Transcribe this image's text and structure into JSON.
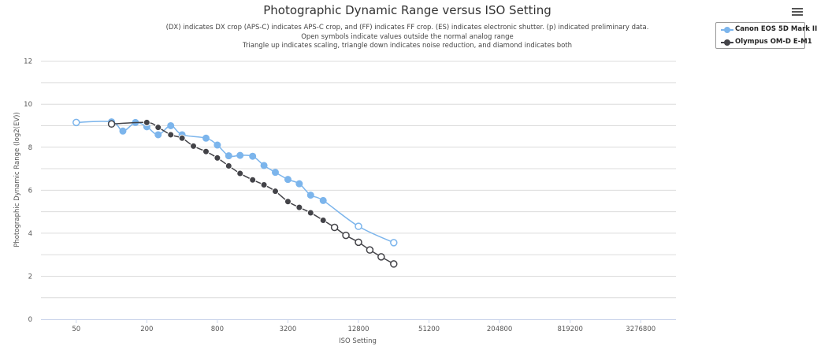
{
  "chart_data": {
    "type": "line",
    "title": "Photographic Dynamic Range versus ISO Setting",
    "subtitle": [
      "(DX) indicates DX crop (APS-C) indicates APS-C crop, and (FF) indicates FF crop. (ES) indicates electronic shutter. (p) indicated preliminary data.",
      "Open symbols indicate values outside the normal analog range",
      "Triangle up indicates scaling, triangle down indicates noise reduction, and diamond indicates both"
    ],
    "xlabel": "ISO Setting",
    "ylabel": "Photographic Dynamic Range (log2(EV))",
    "x_scale": "log2",
    "x_ticks": [
      50,
      200,
      800,
      3200,
      12800,
      51200,
      204800,
      819200,
      3276800
    ],
    "x_tick_labels": [
      "50",
      "200",
      "800",
      "3200",
      "12800",
      "51200",
      "204800",
      "819200",
      "3276800"
    ],
    "xlim": [
      25,
      6553600
    ],
    "ylim": [
      0,
      12.5
    ],
    "y_ticks": [
      0,
      2,
      4,
      6,
      8,
      10,
      12
    ],
    "y_tick_labels": [
      "0",
      "2",
      "4",
      "6",
      "8",
      "10",
      "12"
    ],
    "grid": true,
    "legend_position": "top-right",
    "series": [
      {
        "name": "Canon EOS 5D Mark II",
        "color": "#7cb5ec",
        "points": [
          {
            "x": 50,
            "y": 9.15,
            "open": true
          },
          {
            "x": 100,
            "y": 9.18,
            "open": false
          },
          {
            "x": 125,
            "y": 8.75,
            "open": false
          },
          {
            "x": 160,
            "y": 9.15,
            "open": false
          },
          {
            "x": 200,
            "y": 8.95,
            "open": false
          },
          {
            "x": 250,
            "y": 8.58,
            "open": false
          },
          {
            "x": 320,
            "y": 9.0,
            "open": false
          },
          {
            "x": 400,
            "y": 8.58,
            "open": false
          },
          {
            "x": 640,
            "y": 8.42,
            "open": false
          },
          {
            "x": 800,
            "y": 8.1,
            "open": false
          },
          {
            "x": 1000,
            "y": 7.6,
            "open": false
          },
          {
            "x": 1250,
            "y": 7.62,
            "open": false
          },
          {
            "x": 1600,
            "y": 7.58,
            "open": false
          },
          {
            "x": 2000,
            "y": 7.15,
            "open": false
          },
          {
            "x": 2500,
            "y": 6.83,
            "open": false
          },
          {
            "x": 3200,
            "y": 6.5,
            "open": false
          },
          {
            "x": 4000,
            "y": 6.3,
            "open": false
          },
          {
            "x": 5000,
            "y": 5.77,
            "open": false
          },
          {
            "x": 6400,
            "y": 5.52,
            "open": false
          },
          {
            "x": 12800,
            "y": 4.32,
            "open": true
          },
          {
            "x": 25600,
            "y": 3.56,
            "open": true
          }
        ]
      },
      {
        "name": "Olympus OM-D E-M1",
        "color": "#434348",
        "points": [
          {
            "x": 100,
            "y": 9.08,
            "open": true
          },
          {
            "x": 200,
            "y": 9.15,
            "open": false
          },
          {
            "x": 250,
            "y": 8.92,
            "open": false
          },
          {
            "x": 320,
            "y": 8.58,
            "open": false
          },
          {
            "x": 400,
            "y": 8.42,
            "open": false
          },
          {
            "x": 500,
            "y": 8.05,
            "open": false
          },
          {
            "x": 640,
            "y": 7.8,
            "open": false
          },
          {
            "x": 800,
            "y": 7.5,
            "open": false
          },
          {
            "x": 1000,
            "y": 7.13,
            "open": false
          },
          {
            "x": 1250,
            "y": 6.78,
            "open": false
          },
          {
            "x": 1600,
            "y": 6.48,
            "open": false
          },
          {
            "x": 2000,
            "y": 6.25,
            "open": false
          },
          {
            "x": 2500,
            "y": 5.95,
            "open": false
          },
          {
            "x": 3200,
            "y": 5.47,
            "open": false
          },
          {
            "x": 4000,
            "y": 5.2,
            "open": false
          },
          {
            "x": 5000,
            "y": 4.95,
            "open": false
          },
          {
            "x": 6400,
            "y": 4.6,
            "open": false
          },
          {
            "x": 8000,
            "y": 4.27,
            "open": true
          },
          {
            "x": 10000,
            "y": 3.9,
            "open": true
          },
          {
            "x": 12800,
            "y": 3.58,
            "open": true
          },
          {
            "x": 16000,
            "y": 3.22,
            "open": true
          },
          {
            "x": 20000,
            "y": 2.9,
            "open": true
          },
          {
            "x": 25600,
            "y": 2.57,
            "open": true
          }
        ]
      }
    ]
  },
  "ui": {
    "menu_icon": "hamburger-menu-icon",
    "legend_symbol": "circle-with-line"
  }
}
